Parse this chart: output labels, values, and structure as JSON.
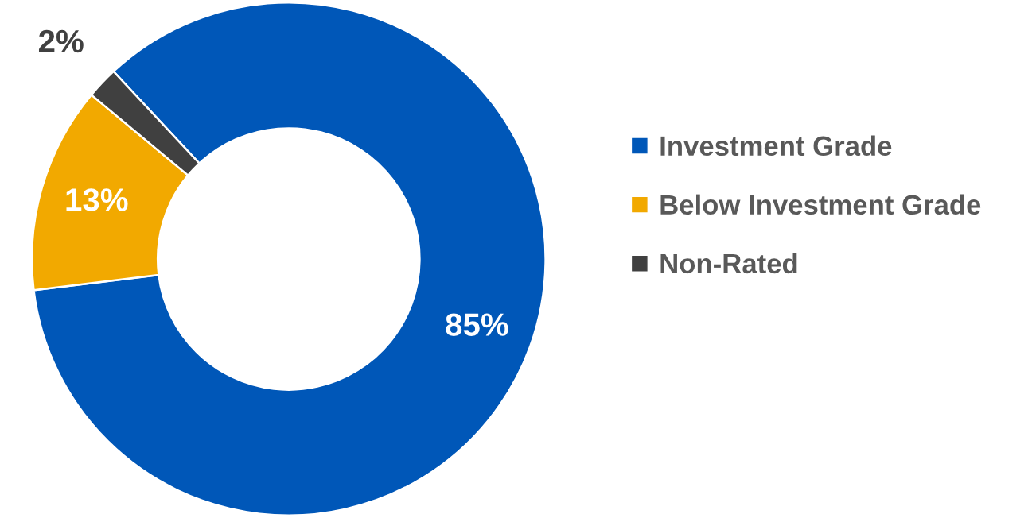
{
  "chart_data": {
    "type": "donut",
    "categories": [
      "Investment Grade",
      "Below Investment Grade",
      "Non-Rated"
    ],
    "values": [
      85,
      13,
      2
    ],
    "colors": [
      "#0057b8",
      "#f2a900",
      "#404040"
    ],
    "value_labels": [
      "85%",
      "13%",
      "2%"
    ],
    "legend": "right"
  }
}
